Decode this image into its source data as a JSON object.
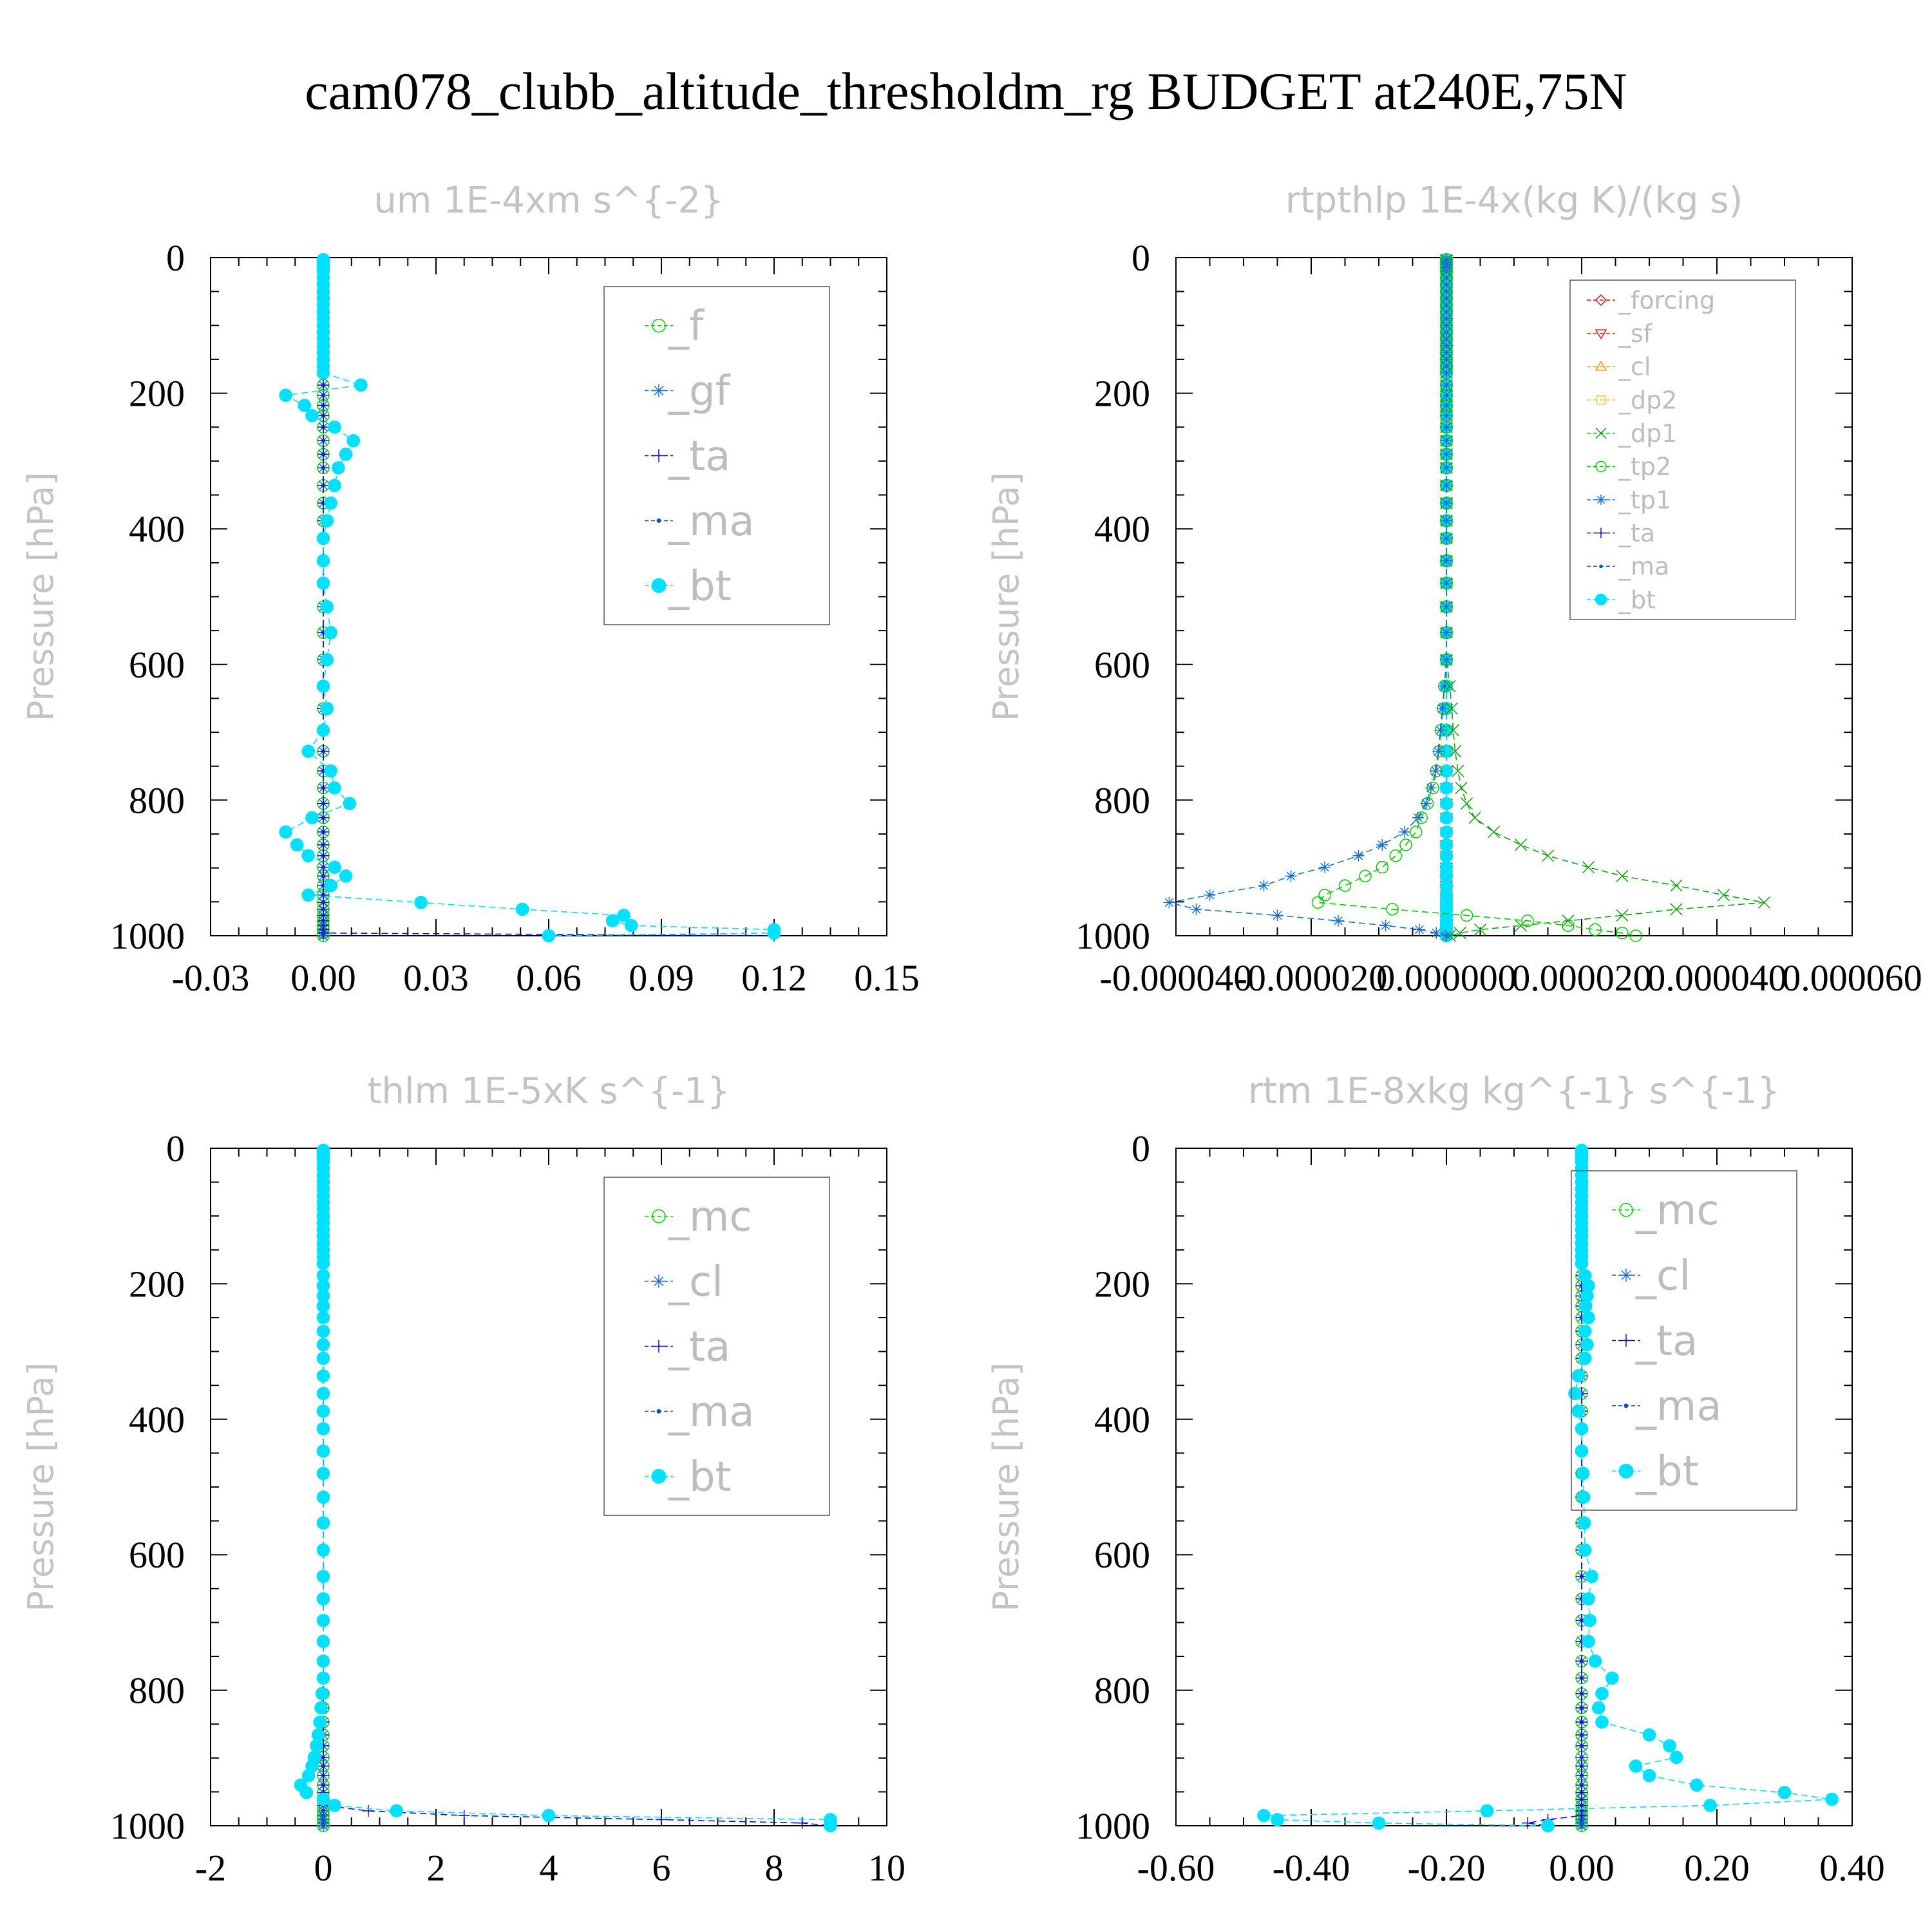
{
  "title": "cam078_clubb_altitude_thresholdm_rg  BUDGET at240E,75N",
  "chart_data": [
    {
      "type": "line",
      "title": "um  1E-4xm s^{-2}",
      "ylabel": "Pressure [hPa]",
      "xlim": [
        -0.03,
        0.15
      ],
      "ylim": [
        1000,
        0
      ],
      "xticks": [
        "-0.03",
        "0.00",
        "0.03",
        "0.06",
        "0.09",
        "0.12",
        "0.15"
      ],
      "yticks": [
        "0",
        "200",
        "400",
        "600",
        "800",
        "1000"
      ],
      "legend": {
        "position": "top-right",
        "font_size": 64
      },
      "levels": [
        3,
        7,
        10,
        14,
        20,
        30,
        40,
        50,
        60,
        70,
        80,
        90,
        100,
        110,
        120,
        130,
        140,
        150,
        160,
        170,
        188,
        203,
        218,
        233,
        250,
        270,
        290,
        310,
        336,
        362,
        388,
        414,
        447,
        480,
        515,
        553,
        593,
        632,
        665,
        697,
        728,
        757,
        782,
        805,
        826,
        847,
        866,
        882,
        899,
        912,
        926,
        940,
        951,
        961,
        970,
        978,
        985,
        991,
        996,
        1000
      ],
      "series": [
        {
          "name": "_f",
          "color": "#00d000",
          "marker": "circle"
        },
        {
          "name": "_gf",
          "color": "#1a70d0",
          "marker": "asterisk"
        },
        {
          "name": "_ta",
          "color": "#1010c8",
          "marker": "plus",
          "values": [
            0,
            0,
            0,
            0,
            0,
            0,
            0,
            0,
            0,
            0,
            0,
            0,
            0,
            0,
            0,
            0,
            0,
            0,
            0,
            0,
            0,
            0,
            0,
            0,
            0,
            0,
            0,
            0,
            0,
            0,
            0,
            0,
            0,
            0,
            0,
            0,
            0,
            0,
            0,
            0,
            0,
            0,
            0,
            0,
            0,
            0,
            0,
            0,
            0,
            0,
            0,
            0,
            0,
            0,
            0,
            0,
            0,
            0,
            0,
            0.12
          ]
        },
        {
          "name": "_ma",
          "color": "#0a58c0",
          "marker": "dot"
        },
        {
          "name": "_bt",
          "color": "#00e0ff",
          "marker": "big-dot",
          "values": [
            0,
            0,
            0,
            0,
            0,
            0,
            0,
            0,
            0,
            0,
            0,
            0,
            0,
            0,
            0,
            0,
            0,
            0,
            0,
            0,
            0.01,
            -0.01,
            -0.005,
            -0.003,
            0.003,
            0.008,
            0.006,
            0.004,
            0.003,
            0.002,
            0.001,
            0,
            0,
            0,
            0.001,
            0.002,
            0.001,
            0,
            0.001,
            0,
            -0.004,
            0.002,
            0.003,
            0.007,
            -0.003,
            -0.01,
            -0.007,
            -0.004,
            0.003,
            0.006,
            0.002,
            -0.004,
            0.026,
            0.053,
            0.08,
            0.077,
            0.082,
            0.12,
            0.12,
            0.06
          ]
        }
      ]
    },
    {
      "type": "line",
      "title": "rtpthlp  1E-4x(kg K)/(kg s)",
      "ylabel": "Pressure [hPa]",
      "xlim": [
        -4e-05,
        6e-05
      ],
      "ylim": [
        1000,
        0
      ],
      "xticks": [
        "-0.000040",
        "-0.000020",
        "0.000000",
        "0.000020",
        "0.000040",
        "0.000060"
      ],
      "yticks": [
        "0",
        "200",
        "400",
        "600",
        "800",
        "1000"
      ],
      "legend": {
        "position": "top-right",
        "font_size": 38
      },
      "levels": [
        3,
        7,
        10,
        14,
        20,
        30,
        40,
        50,
        60,
        70,
        80,
        90,
        100,
        110,
        120,
        130,
        140,
        150,
        160,
        170,
        188,
        203,
        218,
        233,
        250,
        270,
        290,
        310,
        336,
        362,
        388,
        414,
        447,
        480,
        515,
        553,
        593,
        632,
        665,
        697,
        728,
        757,
        782,
        805,
        826,
        847,
        866,
        882,
        899,
        912,
        926,
        940,
        951,
        961,
        970,
        978,
        985,
        991,
        996,
        1000
      ],
      "series": [
        {
          "name": "_forcing",
          "color": "#d01010",
          "marker": "diamond"
        },
        {
          "name": "_sf",
          "color": "#e02020",
          "marker": "triangle-down"
        },
        {
          "name": "_cl",
          "color": "#ff9900",
          "marker": "triangle-up"
        },
        {
          "name": "_dp2",
          "color": "#ffc020",
          "marker": "square"
        },
        {
          "name": "_dp1",
          "color": "#10a010",
          "marker": "cross",
          "values": [
            0,
            0,
            0,
            0,
            0,
            0,
            0,
            0,
            0,
            0,
            0,
            0,
            0,
            0,
            0,
            0,
            0,
            0,
            0,
            0,
            0,
            0,
            0,
            0,
            0,
            0,
            0,
            0,
            0,
            0,
            0,
            0,
            0,
            0,
            0,
            0,
            0,
            5e-07,
            8e-07,
            1e-06,
            1.3e-06,
            1.7e-06,
            2.2e-06,
            3e-06,
            4.2e-06,
            7e-06,
            1.1e-05,
            1.5e-05,
            2.1e-05,
            2.6e-05,
            3.4e-05,
            4.1e-05,
            4.7e-05,
            3.4e-05,
            2.6e-05,
            1.8e-05,
            1.1e-05,
            5e-06,
            2e-06,
            5e-07
          ]
        },
        {
          "name": "_tp2",
          "color": "#00cc00",
          "marker": "circle",
          "values": [
            0,
            0,
            0,
            0,
            0,
            0,
            0,
            0,
            0,
            0,
            0,
            0,
            0,
            0,
            0,
            0,
            0,
            0,
            0,
            0,
            0,
            0,
            0,
            0,
            0,
            0,
            0,
            0,
            0,
            0,
            0,
            0,
            0,
            0,
            0,
            0,
            0,
            -3e-07,
            -5e-07,
            -8e-07,
            -1.1e-06,
            -1.5e-06,
            -2e-06,
            -2.8e-06,
            -3.7e-06,
            -4.5e-06,
            -6e-06,
            -7.5e-06,
            -9.5e-06,
            -1.2e-05,
            -1.5e-05,
            -1.8e-05,
            -1.9e-05,
            -8e-06,
            3e-06,
            1.2e-05,
            1.8e-05,
            2.2e-05,
            2.6e-05,
            2.8e-05
          ]
        },
        {
          "name": "_tp1",
          "color": "#1a70d0",
          "marker": "asterisk",
          "values": [
            0,
            0,
            0,
            0,
            0,
            0,
            0,
            0,
            0,
            0,
            0,
            0,
            0,
            0,
            0,
            0,
            0,
            0,
            0,
            0,
            0,
            0,
            0,
            0,
            0,
            0,
            0,
            0,
            0,
            0,
            0,
            0,
            0,
            0,
            0,
            0,
            0,
            -3e-07,
            -6e-07,
            -9e-07,
            -1.2e-06,
            -1.6e-06,
            -2.3e-06,
            -3e-06,
            -4.2e-06,
            -6.2e-06,
            -9.5e-06,
            -1.3e-05,
            -1.8e-05,
            -2.3e-05,
            -2.7e-05,
            -3.5e-05,
            -4.1e-05,
            -3.7e-05,
            -2.5e-05,
            -1.6e-05,
            -9e-06,
            -4e-06,
            -1.5e-06,
            0
          ]
        },
        {
          "name": "_ta",
          "color": "#1010c8",
          "marker": "plus"
        },
        {
          "name": "_ma",
          "color": "#0a58c0",
          "marker": "dot"
        },
        {
          "name": "_bt",
          "color": "#00e0ff",
          "marker": "big-dot"
        }
      ]
    },
    {
      "type": "line",
      "title": "thlm  1E-5xK s^{-1}",
      "ylabel": "Pressure [hPa]",
      "xlim": [
        -2,
        10
      ],
      "ylim": [
        1000,
        0
      ],
      "xticks": [
        "-2",
        "0",
        "2",
        "4",
        "6",
        "8",
        "10"
      ],
      "yticks": [
        "0",
        "200",
        "400",
        "600",
        "800",
        "1000"
      ],
      "legend": {
        "position": "top-right",
        "font_size": 64
      },
      "levels": [
        3,
        7,
        10,
        14,
        20,
        30,
        40,
        50,
        60,
        70,
        80,
        90,
        100,
        110,
        120,
        130,
        140,
        150,
        160,
        170,
        188,
        203,
        218,
        233,
        250,
        270,
        290,
        310,
        336,
        362,
        388,
        414,
        447,
        480,
        515,
        553,
        593,
        632,
        665,
        697,
        728,
        757,
        782,
        805,
        826,
        847,
        866,
        882,
        899,
        912,
        926,
        940,
        951,
        961,
        970,
        978,
        985,
        991,
        996,
        1000
      ],
      "series": [
        {
          "name": "_mc",
          "color": "#00d000",
          "marker": "circle"
        },
        {
          "name": "_cl",
          "color": "#1a70d0",
          "marker": "asterisk"
        },
        {
          "name": "_ta",
          "color": "#1010c8",
          "marker": "plus",
          "values": [
            0,
            0,
            0,
            0,
            0,
            0,
            0,
            0,
            0,
            0,
            0,
            0,
            0,
            0,
            0,
            0,
            0,
            0,
            0,
            0,
            0,
            0,
            0,
            0,
            0,
            0,
            0,
            0,
            0,
            0,
            0,
            0,
            0,
            0,
            0,
            0,
            0,
            0,
            0,
            0,
            0,
            0,
            0,
            0,
            0,
            0,
            0,
            0,
            0,
            0,
            0,
            0,
            0,
            0,
            0,
            0.8,
            2.5,
            6,
            8.5,
            9
          ]
        },
        {
          "name": "_ma",
          "color": "#0a58c0",
          "marker": "dot"
        },
        {
          "name": "_bt",
          "color": "#00e0ff",
          "marker": "big-dot",
          "values": [
            0,
            0,
            0,
            0,
            0,
            0,
            0,
            0,
            0,
            0,
            0,
            0,
            0,
            0,
            0,
            0,
            0,
            0,
            0,
            0,
            0,
            0,
            0,
            0,
            0,
            0,
            0,
            0,
            0,
            0,
            0,
            0,
            0,
            0,
            0,
            0,
            0,
            0,
            0,
            0,
            0,
            0,
            0,
            -0.02,
            -0.04,
            -0.06,
            -0.09,
            -0.12,
            -0.16,
            -0.2,
            -0.26,
            -0.4,
            -0.3,
            0,
            0.2,
            1.3,
            4,
            9,
            9,
            9
          ]
        }
      ]
    },
    {
      "type": "line",
      "title": "rtm  1E-8xkg kg^{-1} s^{-1}",
      "ylabel": "Pressure [hPa]",
      "xlim": [
        -0.6,
        0.4
      ],
      "ylim": [
        1000,
        0
      ],
      "xticks": [
        "-0.60",
        "-0.40",
        "-0.20",
        "0.00",
        "0.20",
        "0.40"
      ],
      "yticks": [
        "0",
        "200",
        "400",
        "600",
        "800",
        "1000"
      ],
      "legend": {
        "position": "top-right",
        "font_size": 64
      },
      "levels": [
        3,
        7,
        10,
        14,
        20,
        30,
        40,
        50,
        60,
        70,
        80,
        90,
        100,
        110,
        120,
        130,
        140,
        150,
        160,
        170,
        188,
        203,
        218,
        233,
        250,
        270,
        290,
        310,
        336,
        362,
        388,
        414,
        447,
        480,
        515,
        553,
        593,
        632,
        665,
        697,
        728,
        757,
        782,
        805,
        826,
        847,
        866,
        882,
        899,
        912,
        926,
        940,
        951,
        961,
        970,
        978,
        985,
        991,
        996,
        1000
      ],
      "series": [
        {
          "name": "_mc",
          "color": "#00d000",
          "marker": "circle"
        },
        {
          "name": "_cl",
          "color": "#1a70d0",
          "marker": "asterisk"
        },
        {
          "name": "_ta",
          "color": "#1010c8",
          "marker": "plus",
          "values": [
            0,
            0,
            0,
            0,
            0,
            0,
            0,
            0,
            0,
            0,
            0,
            0,
            0,
            0,
            0,
            0,
            0,
            0,
            0,
            0,
            0,
            0,
            0,
            0,
            0,
            0,
            0,
            0,
            0,
            0,
            0,
            0,
            0,
            0,
            0,
            0,
            0,
            0,
            0,
            0,
            0,
            0,
            0,
            0,
            0,
            0,
            0,
            0,
            0,
            0,
            0,
            0,
            0,
            0,
            0,
            0,
            0,
            -0.05,
            -0.08,
            -0.05
          ]
        },
        {
          "name": "_ma",
          "color": "#0a58c0",
          "marker": "dot"
        },
        {
          "name": "_bt",
          "color": "#00e0ff",
          "marker": "big-dot",
          "values": [
            0,
            0,
            0,
            0,
            0,
            0,
            0,
            0,
            0,
            0,
            0,
            0,
            0,
            0,
            0,
            0,
            0,
            0,
            0,
            0,
            0.005,
            0.01,
            0.008,
            0.006,
            0.01,
            0.005,
            0.008,
            0.005,
            -0.005,
            -0.01,
            -0.005,
            0,
            0,
            0.002,
            0.003,
            0.004,
            0.005,
            0.015,
            0.01,
            0.012,
            0.01,
            0.02,
            0.045,
            0.03,
            0.025,
            0.03,
            0.1,
            0.13,
            0.14,
            0.08,
            0.1,
            0.17,
            0.3,
            0.37,
            0.19,
            -0.14,
            -0.47,
            -0.45,
            -0.3,
            -0.05
          ]
        }
      ]
    }
  ]
}
